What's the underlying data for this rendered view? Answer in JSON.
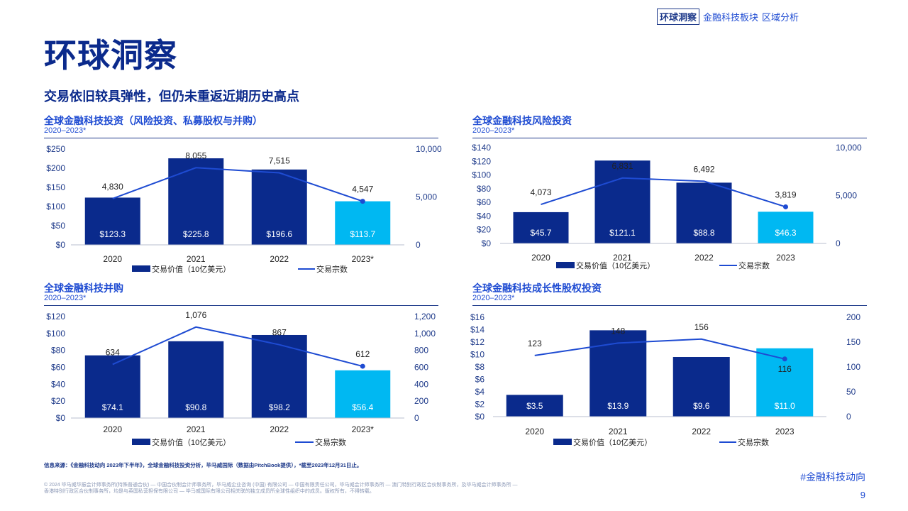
{
  "header": {
    "nav": [
      "环球洞察",
      "金融科技板块",
      "区域分析"
    ],
    "title": "环球洞察",
    "subtitle": "交易依旧较具弹性，但仍未重返近期历史高点"
  },
  "colors": {
    "bar": "#0a2a8c",
    "highlight": "#00b8f2",
    "line": "#1e4bd2",
    "text": "#1e3a8a"
  },
  "chart_data": [
    {
      "type": "bar",
      "title": "全球金融科技投资（风险投资、私募股权与并购）",
      "subtitle": "2020–2023*",
      "categories": [
        "2020",
        "2021",
        "2022",
        "2023*"
      ],
      "series": [
        {
          "name": "交易价值（10亿美元）",
          "type": "bar",
          "values": [
            123.3,
            225.8,
            196.6,
            113.7
          ],
          "labels": [
            "$123.3",
            "$225.8",
            "$196.6",
            "$113.7"
          ]
        },
        {
          "name": "交易宗数",
          "type": "line",
          "axis": "right",
          "values": [
            4830,
            8055,
            7515,
            4547
          ],
          "labels": [
            "4,830",
            "8,055",
            "7,515",
            "4,547"
          ]
        }
      ],
      "ylim": [
        0,
        250
      ],
      "left_ticks": [
        "$0",
        "$50",
        "$100",
        "$150",
        "$200",
        "$250"
      ],
      "y2lim": [
        0,
        10000
      ],
      "right_ticks": [
        "0",
        "5,000",
        "10,000"
      ],
      "legend": [
        "交易价值（10亿美元）",
        "交易宗数"
      ]
    },
    {
      "type": "bar",
      "title": "全球金融科技风险投资",
      "subtitle": "2020–2023*",
      "categories": [
        "2020",
        "2021",
        "2022",
        "2023"
      ],
      "series": [
        {
          "name": "交易价值（10亿美元）",
          "type": "bar",
          "values": [
            45.7,
            121.1,
            88.8,
            46.3
          ],
          "labels": [
            "$45.7",
            "$121.1",
            "$88.8",
            "$46.3"
          ]
        },
        {
          "name": "交易宗数",
          "type": "line",
          "axis": "right",
          "values": [
            4073,
            6831,
            6492,
            3819
          ],
          "labels": [
            "4,073",
            "6,831",
            "6,492",
            "3,819"
          ]
        }
      ],
      "ylim": [
        0,
        140
      ],
      "left_ticks": [
        "$0",
        "$20",
        "$40",
        "$60",
        "$80",
        "$100",
        "$120",
        "$140"
      ],
      "y2lim": [
        0,
        10000
      ],
      "right_ticks": [
        "0",
        "5,000",
        "10,000"
      ],
      "legend": [
        "交易价值（10亿美元）",
        "交易宗数"
      ]
    },
    {
      "type": "bar",
      "title": "全球金融科技并购",
      "subtitle": "2020–2023*",
      "categories": [
        "2020",
        "2021",
        "2022",
        "2023*"
      ],
      "series": [
        {
          "name": "交易价值（10亿美元）",
          "type": "bar",
          "values": [
            74.1,
            90.8,
            98.2,
            56.4
          ],
          "labels": [
            "$74.1",
            "$90.8",
            "$98.2",
            "$56.4"
          ]
        },
        {
          "name": "交易宗数",
          "type": "line",
          "axis": "right",
          "values": [
            634,
            1076,
            867,
            612
          ],
          "labels": [
            "634",
            "1,076",
            "867",
            "612"
          ]
        }
      ],
      "ylim": [
        0,
        120
      ],
      "left_ticks": [
        "$0",
        "$20",
        "$40",
        "$60",
        "$80",
        "$100",
        "$120"
      ],
      "y2lim": [
        0,
        1200
      ],
      "right_ticks": [
        "0",
        "200",
        "400",
        "600",
        "800",
        "1,000",
        "1,200"
      ],
      "legend": [
        "交易价值（10亿美元）",
        "交易宗数"
      ]
    },
    {
      "type": "bar",
      "title": "全球金融科技成长性股权投资",
      "subtitle": "2020–2023*",
      "categories": [
        "2020",
        "2021",
        "2022",
        "2023"
      ],
      "series": [
        {
          "name": "交易价值（10亿美元）",
          "type": "bar",
          "values": [
            3.5,
            13.9,
            9.6,
            11.0
          ],
          "labels": [
            "$3.5",
            "$13.9",
            "$9.6",
            "$11.0"
          ]
        },
        {
          "name": "交易宗数",
          "type": "line",
          "axis": "right",
          "values": [
            123,
            148,
            156,
            116
          ],
          "labels": [
            "123",
            "148",
            "156",
            "116"
          ]
        }
      ],
      "ylim": [
        0,
        16
      ],
      "left_ticks": [
        "$0",
        "$2",
        "$4",
        "$6",
        "$8",
        "$10",
        "$12",
        "$14",
        "$16"
      ],
      "y2lim": [
        0,
        200
      ],
      "right_ticks": [
        "0",
        "50",
        "100",
        "150",
        "200"
      ],
      "legend": [
        "交易价值（10亿美元）",
        "交易宗数"
      ]
    }
  ],
  "footer": {
    "source": "信息来源：《金融科技动向 2023年下半年》，全球金融科技投资分析，毕马威国际（数据由PitchBook提供），*截至2023年12月31日止。",
    "copyright_line1": "© 2024 毕马威华振会计师事务所(特殊普通合伙) — 中国合伙制会计师事务所，毕马威企业咨询 (中国) 有限公司 — 中国有限责任公司，毕马威会计师事务所 — 澳门特别行政区合伙制事务所，及毕马威会计师事务所 —",
    "copyright_line2": "香港特别行政区合伙制事务所，均是与英国私营担保有限公司 — 毕马威国际有限公司相关联的独立成员所全球性组织中的成员。版权所有，不得转载。",
    "hashtag": "#金融科技动向",
    "page": "9"
  }
}
